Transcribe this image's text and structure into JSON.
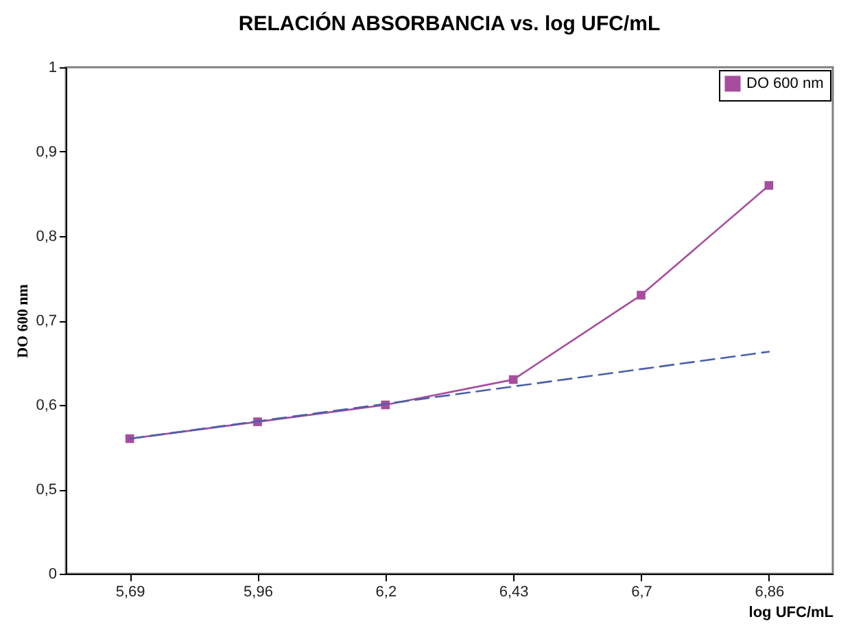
{
  "chart_data": {
    "type": "line",
    "title": "RELACIÓN ABSORBANCIA vs. log UFC/mL",
    "xlabel": "log UFC/mL",
    "ylabel": "DO 600 nm",
    "categories": [
      "5,69",
      "5,96",
      "6,2",
      "6,43",
      "6,7",
      "6,86"
    ],
    "series": [
      {
        "name": "DO 600 nm",
        "color": "#a64d9e",
        "values": [
          0.56,
          0.58,
          0.6,
          0.63,
          0.73,
          0.86
        ]
      },
      {
        "type": "line",
        "color": "#4a5fa8",
        "x": [
          "5,69",
          "6,86"
        ],
        "values": [
          0.56,
          0.663
        ],
        "line_style": "dashed",
        "marker": "none"
      }
    ],
    "ylim": [
      0.4,
      1
    ],
    "yticks": [
      {
        "value": 0.4,
        "label": "0"
      },
      {
        "value": 0.5,
        "label": "0,5"
      },
      {
        "value": 0.6,
        "label": "0,6"
      },
      {
        "value": 0.7,
        "label": "0,7"
      },
      {
        "value": 0.8,
        "label": "0,8"
      },
      {
        "value": 0.9,
        "label": "0,9"
      },
      1
    ],
    "marker": "square",
    "line_style": "solid",
    "legend": "top right",
    "grid": false
  }
}
